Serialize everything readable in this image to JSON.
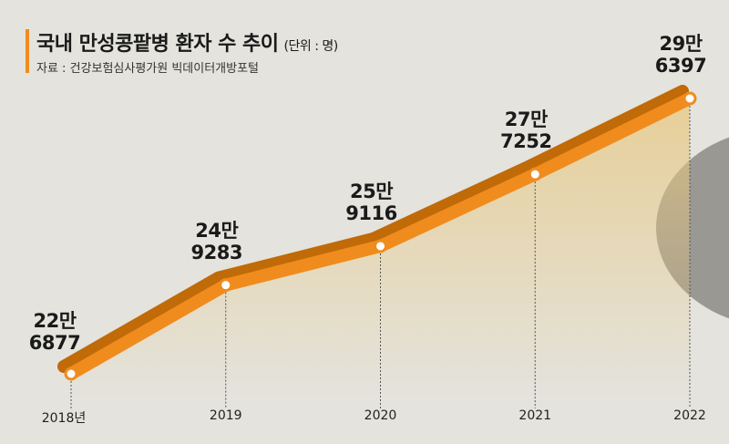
{
  "title": "국내 만성콩팥병 환자 수 추이",
  "subtitle": "(단위 : 명)",
  "source": "자료 : 건강보험심사평가원 빅데이터개방포털",
  "chart_data": {
    "type": "line",
    "categories": [
      "2018년",
      "2019",
      "2020",
      "2021",
      "2022"
    ],
    "values": [
      226877,
      249283,
      259116,
      277252,
      296397
    ],
    "value_labels": [
      "22만\n6877",
      "24만\n9283",
      "25만\n9116",
      "27만\n7252",
      "29만\n6397"
    ],
    "color": "#f08c1e"
  }
}
